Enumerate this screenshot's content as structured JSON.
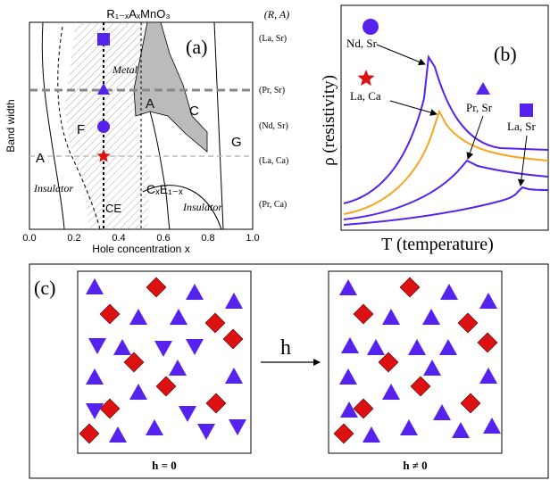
{
  "colors": {
    "purple": "#5522ee",
    "red": "#dd1111",
    "orange": "#f5a623",
    "gray_region": "#bbbbbb",
    "dash_gray": "#888888",
    "light_dash": "#bbbbbb"
  },
  "panel_a": {
    "title": "R₁₋ₓAₓMnO₃",
    "label": "(a)",
    "ylabel": "Band width",
    "xlabel": "Hole concentration x",
    "xticks": [
      "0.0",
      "0.2",
      "0.4",
      "0.6",
      "0.8",
      "1.0"
    ],
    "right_header": "(R, A)",
    "compounds": [
      "(La, Sr)",
      "(Pr, Sr)",
      "(Nd, Sr)",
      "(La, Ca)",
      "(Pr, Ca)"
    ],
    "regions": {
      "metal": "Metal",
      "a_left": "A",
      "f": "F",
      "a_mid": "A",
      "c": "C",
      "g": "G",
      "insulator_left": "Insulator",
      "insulator_right": "Insulator",
      "ce": "CE",
      "cxe": "CₓE₁₋ₓ"
    },
    "markers": [
      {
        "shape": "square",
        "color": "purple"
      },
      {
        "shape": "triangle",
        "color": "purple"
      },
      {
        "shape": "circle",
        "color": "purple"
      },
      {
        "shape": "star",
        "color": "red"
      }
    ]
  },
  "panel_b": {
    "label": "(b)",
    "ylabel": "ρ (resistivity)",
    "xlabel": "T (temperature)",
    "legend": [
      {
        "label": "Nd, Sr",
        "marker": "circle",
        "color": "purple"
      },
      {
        "label": "La, Ca",
        "marker": "star",
        "color": "red"
      },
      {
        "label": "Pr, Sr",
        "marker": "triangle",
        "color": "purple"
      },
      {
        "label": "La, Sr",
        "marker": "square",
        "color": "purple"
      }
    ]
  },
  "panel_c": {
    "label": "(c)",
    "arrow_label": "h",
    "left_caption": "h = 0",
    "right_caption": "h ≠ 0"
  }
}
